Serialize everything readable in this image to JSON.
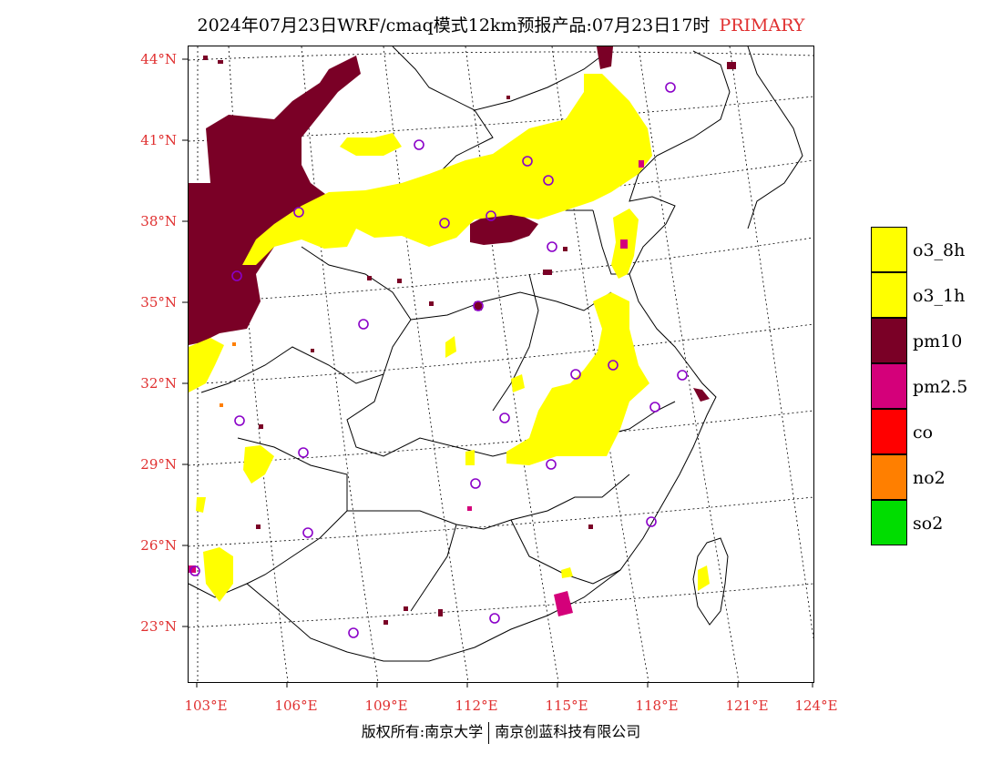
{
  "header": {
    "title": "2024年07月23日WRF/cmaq模式12km预报产品:07月23日17时",
    "tag": "PRIMARY"
  },
  "axes": {
    "lat_labels": [
      "44°N",
      "41°N",
      "38°N",
      "35°N",
      "32°N",
      "29°N",
      "26°N",
      "23°N"
    ],
    "lon_labels": [
      "103°E",
      "106°E",
      "109°E",
      "112°E",
      "115°E",
      "118°E",
      "121°E",
      "124°E"
    ]
  },
  "legend": [
    {
      "label": "o3_8h",
      "color": "#ffff00"
    },
    {
      "label": "o3_1h",
      "color": "#ffff00"
    },
    {
      "label": "pm10",
      "color": "#7a0026"
    },
    {
      "label": "pm2.5",
      "color": "#d4007a"
    },
    {
      "label": "co",
      "color": "#ff0000"
    },
    {
      "label": "no2",
      "color": "#ff7f00"
    },
    {
      "label": "so2",
      "color": "#00dd00"
    }
  ],
  "footer": {
    "left": "版权所有:南京大学",
    "right": "南京创蓝科技有限公司"
  },
  "colors": {
    "axis_label": "#e03030",
    "station_marker": "#8a00c8"
  }
}
